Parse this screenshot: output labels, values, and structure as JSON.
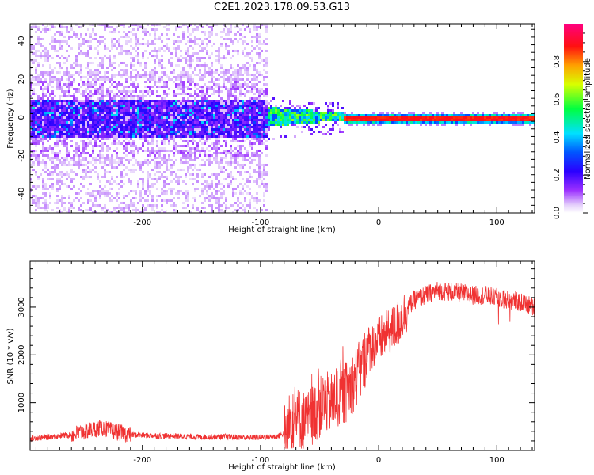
{
  "title": "C2E1.2023.178.09.53.G13",
  "chart_data": [
    {
      "type": "heatmap",
      "xlabel": "Height of straight line (km)",
      "ylabel": "Frequency (Hz)",
      "xlim": [
        -295,
        132
      ],
      "ylim": [
        -50,
        49
      ],
      "xticks": [
        -200,
        -100,
        0,
        100
      ],
      "yticks": [
        -40,
        -20,
        0,
        20,
        40
      ],
      "colorbar": {
        "label": "Normalized spectral amplitude",
        "range": [
          0.0,
          1.0
        ],
        "ticks": [
          0.0,
          0.2,
          0.4,
          0.6,
          0.8
        ],
        "tick_labels": [
          "0.0",
          "0.2",
          "0.4",
          "0.6",
          "0.8"
        ],
        "colormap": "rainbow (violet → blue → cyan → green → yellow → orange → red → magenta)"
      },
      "regions": [
        {
          "x_range": [
            -295,
            -95
          ],
          "description": "broad noisy spread",
          "freq_spread": [
            -50,
            49
          ],
          "core_band": [
            -10,
            10
          ],
          "amplitude": 0.15
        },
        {
          "x_range": [
            -95,
            -30
          ],
          "description": "narrowing band",
          "core_band": [
            -4,
            6
          ],
          "amplitude": 0.5
        },
        {
          "x_range": [
            -30,
            132
          ],
          "description": "strong narrow line at 0 Hz",
          "core_band": [
            -1,
            1
          ],
          "amplitude": 0.9
        }
      ]
    },
    {
      "type": "line",
      "xlabel": "Height of straight line (km)",
      "ylabel": "SNR (10 * v/v)",
      "xlim": [
        -295,
        132
      ],
      "ylim": [
        0,
        3960
      ],
      "xticks": [
        -200,
        -100,
        0,
        100
      ],
      "yticks": [
        1000,
        2000,
        3000
      ],
      "series": [
        {
          "color": "#f03232",
          "x": [
            -295,
            -280,
            -260,
            -245,
            -235,
            -225,
            -210,
            -190,
            -170,
            -150,
            -130,
            -110,
            -95,
            -85,
            -78,
            -75,
            -70,
            -65,
            -60,
            -55,
            -50,
            -45,
            -40,
            -35,
            -30,
            -25,
            -20,
            -15,
            -12,
            -10,
            -5,
            0,
            5,
            10,
            15,
            20,
            25,
            30,
            40,
            50,
            60,
            70,
            80,
            90,
            100,
            110,
            120,
            132
          ],
          "y": [
            250,
            280,
            330,
            420,
            480,
            400,
            330,
            310,
            300,
            280,
            290,
            270,
            280,
            300,
            380,
            600,
            700,
            650,
            600,
            800,
            900,
            1000,
            1000,
            1100,
            1150,
            1300,
            1500,
            1700,
            1900,
            2100,
            2200,
            2300,
            2400,
            2500,
            2600,
            2800,
            3000,
            3150,
            3250,
            3350,
            3320,
            3300,
            3250,
            3250,
            3200,
            3150,
            3100,
            3000
          ]
        }
      ]
    }
  ]
}
